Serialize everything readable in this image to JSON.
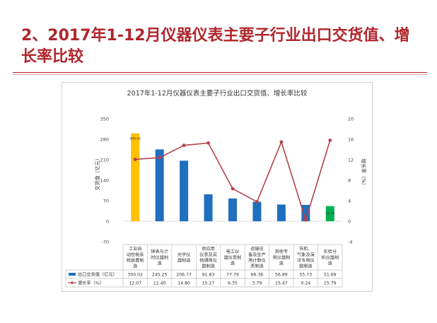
{
  "slide": {
    "title": "2、2017年1-12月仪器仪表主要子行业出口交货值、增长率比较"
  },
  "chart_data": {
    "type": "bar",
    "title": "2017年1-12月仪器仪表主要子行业出口交货值、增长率比较",
    "categories": [
      "工业自动控制系统装置制造",
      "钟表与计时仪器制造",
      "光学仪器制造",
      "供应用仪表及其他通用仪器制造",
      "电工仪器仪表制造",
      "运输设备及生产用计数仪表制造",
      "其他专用仪器制造",
      "导航、气象及海洋专用仪器制造",
      "实验分析仪器制造"
    ],
    "categories_display": [
      [
        "工业自",
        "动控制系",
        "统装置制",
        "造"
      ],
      [
        "钟表与计",
        "时仪器制",
        "造"
      ],
      [
        "光学仪",
        "器制造"
      ],
      [
        "供应用",
        "仪表及其",
        "他通用仪",
        "器制造"
      ],
      [
        "电工仪",
        "器仪表制",
        "造"
      ],
      [
        "运输设",
        "备及生产",
        "用计数仪",
        "表制造"
      ],
      [
        "其他专",
        "用仪器制",
        "造"
      ],
      [
        "导航、",
        "气象及海",
        "洋专用仪",
        "器制造"
      ],
      [
        "实验分",
        "析仪器制",
        "造"
      ]
    ],
    "series": [
      {
        "name": "出口交货值（亿元）",
        "kind": "bar",
        "axis": "left",
        "values": [
          300.02,
          245.25,
          206.77,
          91.83,
          77.79,
          66.36,
          56.89,
          55.73,
          51.69
        ],
        "colors": [
          "#ffc000",
          "#1f6fbf",
          "#1f6fbf",
          "#1f6fbf",
          "#1f6fbf",
          "#1f6fbf",
          "#1f6fbf",
          "#1f6fbf",
          "#00b050"
        ]
      },
      {
        "name": "增长率（%）",
        "kind": "line",
        "axis": "right",
        "values": [
          12.07,
          12.4,
          14.8,
          15.27,
          6.35,
          3.79,
          15.47,
          0.24,
          15.79
        ],
        "color": "#b5414a"
      }
    ],
    "table_values": {
      "bar": [
        "300.02",
        "245.25",
        "206.77",
        "91.83",
        "77.79",
        "66.36",
        "56.89",
        "55.73",
        "51.69"
      ],
      "line": [
        "12.07",
        "12.40",
        "14.80",
        "15.27",
        "6.35",
        "3.79",
        "15.47",
        "0.24",
        "15.79"
      ]
    },
    "data_labels": [
      {
        "index": 0,
        "text": "300.02"
      },
      {
        "index": 8,
        "text": "15.79"
      }
    ],
    "ylabel": "交货值（亿元）",
    "y2label": "增长率（%）",
    "ylim": [
      -70,
      350
    ],
    "yticks": [
      -70,
      0,
      70,
      140,
      210,
      280,
      350
    ],
    "y2lim": [
      -4,
      20
    ],
    "y2ticks": [
      -4,
      0,
      4,
      8,
      12,
      16,
      20
    ],
    "grid": false,
    "legend": "data-table"
  }
}
